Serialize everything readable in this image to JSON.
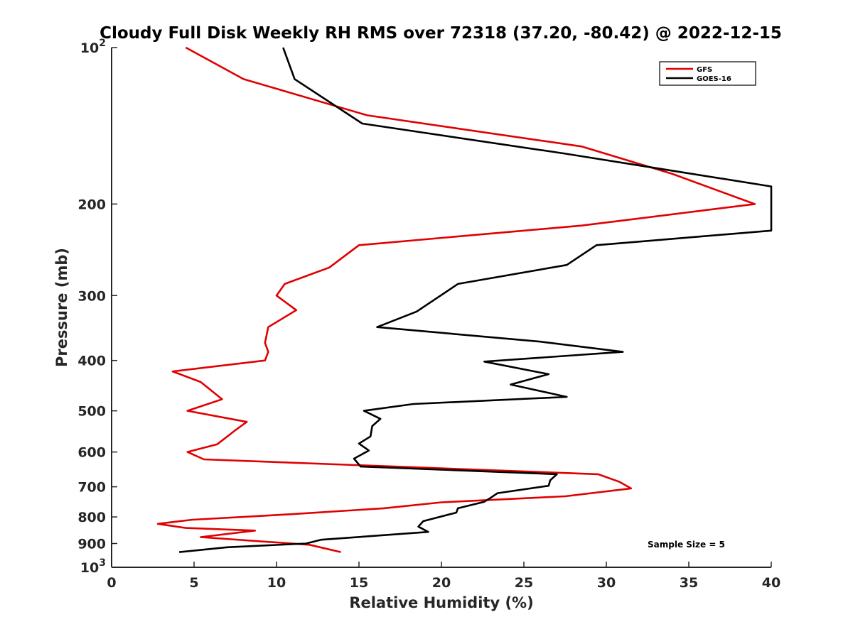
{
  "chart_data": {
    "type": "line",
    "title": "Cloudy Full Disk Weekly RH RMS over 72318 (37.20, -80.42) @ 2022-12-15",
    "xlabel": "Relative Humidity (%)",
    "ylabel": "Pressure (mb)",
    "xlim": [
      0,
      40
    ],
    "ylim": [
      100,
      1000
    ],
    "yscale": "log",
    "y_reversed": true,
    "grid": false,
    "legend_position": "top-right",
    "x_ticks": [
      "0",
      "5",
      "10",
      "15",
      "20",
      "25",
      "30",
      "35",
      "40"
    ],
    "y_ticks": [
      {
        "value": 100,
        "base": "10",
        "exp": "2"
      },
      {
        "value": 200,
        "label": "200"
      },
      {
        "value": 300,
        "label": "300"
      },
      {
        "value": 400,
        "label": "400"
      },
      {
        "value": 500,
        "label": "500"
      },
      {
        "value": 600,
        "label": "600"
      },
      {
        "value": 700,
        "label": "700"
      },
      {
        "value": 800,
        "label": "800"
      },
      {
        "value": 900,
        "label": "900"
      },
      {
        "value": 1000,
        "base": "10",
        "exp": "3"
      }
    ],
    "annotation": "Sample Size = 5",
    "series": [
      {
        "name": "GFS",
        "color": "#e00000",
        "points": [
          [
            4.5,
            100
          ],
          [
            8.0,
            115
          ],
          [
            15.5,
            135
          ],
          [
            28.5,
            155
          ],
          [
            34.0,
            175
          ],
          [
            39.0,
            200
          ],
          [
            28.5,
            220
          ],
          [
            15.0,
            240
          ],
          [
            13.2,
            265
          ],
          [
            10.5,
            285
          ],
          [
            10.0,
            300
          ],
          [
            11.2,
            320
          ],
          [
            9.5,
            345
          ],
          [
            9.3,
            370
          ],
          [
            9.5,
            385
          ],
          [
            9.3,
            400
          ],
          [
            3.7,
            420
          ],
          [
            5.4,
            440
          ],
          [
            6.7,
            475
          ],
          [
            4.6,
            500
          ],
          [
            8.2,
            525
          ],
          [
            7.5,
            545
          ],
          [
            6.4,
            580
          ],
          [
            4.6,
            600
          ],
          [
            5.6,
            620
          ],
          [
            29.5,
            662
          ],
          [
            30.8,
            685
          ],
          [
            31.5,
            705
          ],
          [
            27.5,
            730
          ],
          [
            20.0,
            750
          ],
          [
            16.5,
            770
          ],
          [
            11.0,
            790
          ],
          [
            4.9,
            810
          ],
          [
            2.8,
            825
          ],
          [
            4.5,
            840
          ],
          [
            8.7,
            850
          ],
          [
            5.4,
            875
          ],
          [
            12.0,
            905
          ],
          [
            13.9,
            935
          ]
        ]
      },
      {
        "name": "GOES-16",
        "color": "#000000",
        "points": [
          [
            10.4,
            100
          ],
          [
            11.1,
            115
          ],
          [
            15.2,
            140
          ],
          [
            27.5,
            160
          ],
          [
            40.0,
            185
          ],
          [
            40.0,
            225
          ],
          [
            29.4,
            240
          ],
          [
            27.6,
            262
          ],
          [
            21.0,
            285
          ],
          [
            18.5,
            322
          ],
          [
            16.1,
            345
          ],
          [
            26.0,
            368
          ],
          [
            31.0,
            385
          ],
          [
            22.6,
            402
          ],
          [
            26.5,
            425
          ],
          [
            24.2,
            445
          ],
          [
            27.6,
            470
          ],
          [
            18.3,
            485
          ],
          [
            15.3,
            500
          ],
          [
            16.3,
            518
          ],
          [
            15.8,
            535
          ],
          [
            15.7,
            560
          ],
          [
            15.0,
            578
          ],
          [
            15.6,
            596
          ],
          [
            14.7,
            618
          ],
          [
            15.1,
            640
          ],
          [
            27.0,
            662
          ],
          [
            26.6,
            680
          ],
          [
            26.5,
            697
          ],
          [
            23.4,
            720
          ],
          [
            22.9,
            738
          ],
          [
            22.6,
            748
          ],
          [
            21.0,
            770
          ],
          [
            20.9,
            785
          ],
          [
            18.9,
            815
          ],
          [
            18.6,
            835
          ],
          [
            19.2,
            855
          ],
          [
            12.7,
            885
          ],
          [
            11.8,
            900
          ],
          [
            7.0,
            915
          ],
          [
            4.1,
            935
          ]
        ]
      }
    ]
  }
}
